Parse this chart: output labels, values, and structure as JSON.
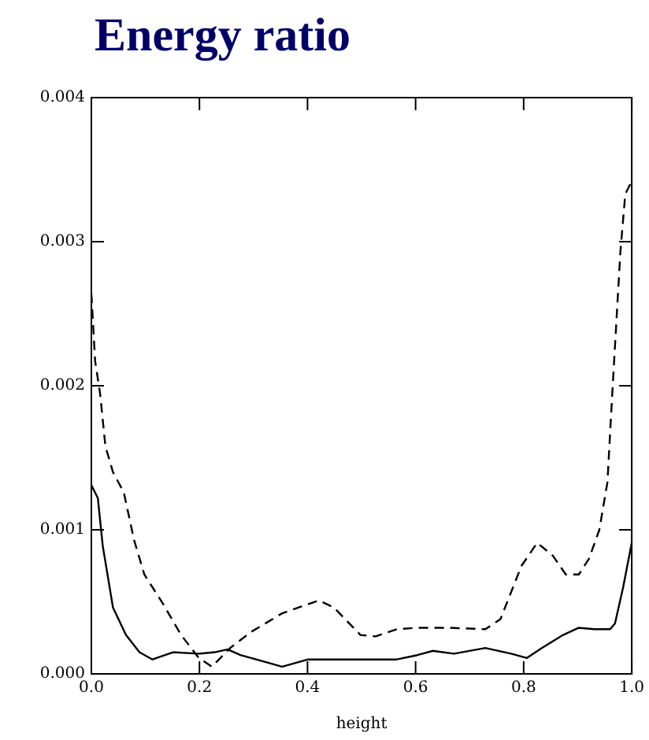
{
  "chart_data": {
    "type": "line",
    "title": "Energy ratio",
    "xlabel": "height",
    "xlim": [
      0,
      1
    ],
    "xticks": [
      {
        "value": 0,
        "label": "0.0"
      },
      {
        "value": 0.2,
        "label": "0.2"
      },
      {
        "value": 0.4,
        "label": "0.4"
      },
      {
        "value": 0.6,
        "label": "0.6"
      },
      {
        "value": 0.8,
        "label": "0.8"
      },
      {
        "value": 1,
        "label": "1.0"
      }
    ],
    "ylim": [
      0,
      0.004
    ],
    "yticks": [
      {
        "value": 0,
        "label": "0.000"
      },
      {
        "value": 0.001,
        "label": "0.001"
      },
      {
        "value": 0.002,
        "label": "0.002"
      },
      {
        "value": 0.003,
        "label": "0.003"
      },
      {
        "value": 0.004,
        "label": "0.004"
      }
    ],
    "grid": false,
    "legend": false,
    "marker": "none",
    "series": [
      {
        "color": "#000000",
        "line_style": "solid",
        "x": [
          0,
          0.012,
          0.021,
          0.04,
          0.064,
          0.089,
          0.113,
          0.151,
          0.199,
          0.228,
          0.252,
          0.276,
          0.305,
          0.353,
          0.401,
          0.459,
          0.507,
          0.565,
          0.603,
          0.632,
          0.671,
          0.729,
          0.777,
          0.806,
          0.834,
          0.873,
          0.902,
          0.931,
          0.96,
          0.969,
          0.984,
          1
        ],
        "values": [
          0.00131,
          0.00122,
          0.00089,
          0.00046,
          0.00027,
          0.00015,
          0.0001,
          0.00015,
          0.00014,
          0.00015,
          0.00017,
          0.00013,
          0.0001,
          5e-05,
          0.0001,
          0.0001,
          0.0001,
          0.0001,
          0.00013,
          0.00016,
          0.00014,
          0.00018,
          0.00014,
          0.00011,
          0.00018,
          0.00027,
          0.00032,
          0.00031,
          0.00031,
          0.00035,
          0.0006,
          0.00091
        ]
      },
      {
        "color": "#000000",
        "line_style": "dashed",
        "x": [
          0,
          0.007,
          0.016,
          0.026,
          0.04,
          0.06,
          0.079,
          0.098,
          0.132,
          0.166,
          0.199,
          0.223,
          0.257,
          0.295,
          0.353,
          0.421,
          0.449,
          0.498,
          0.526,
          0.565,
          0.603,
          0.661,
          0.729,
          0.757,
          0.796,
          0.825,
          0.854,
          0.878,
          0.902,
          0.921,
          0.94,
          0.955,
          0.964,
          0.979,
          0.988,
          1
        ],
        "values": [
          0.00264,
          0.00217,
          0.00195,
          0.00158,
          0.0014,
          0.00126,
          0.00093,
          0.00069,
          0.00049,
          0.00027,
          0.00011,
          5e-05,
          0.00018,
          0.00029,
          0.00042,
          0.00051,
          0.00046,
          0.00027,
          0.00026,
          0.00031,
          0.00032,
          0.00032,
          0.00031,
          0.00038,
          0.00075,
          0.00091,
          0.00082,
          0.00069,
          0.00069,
          0.0008,
          0.001,
          0.00133,
          0.00195,
          0.00293,
          0.00333,
          0.00342
        ]
      }
    ]
  }
}
